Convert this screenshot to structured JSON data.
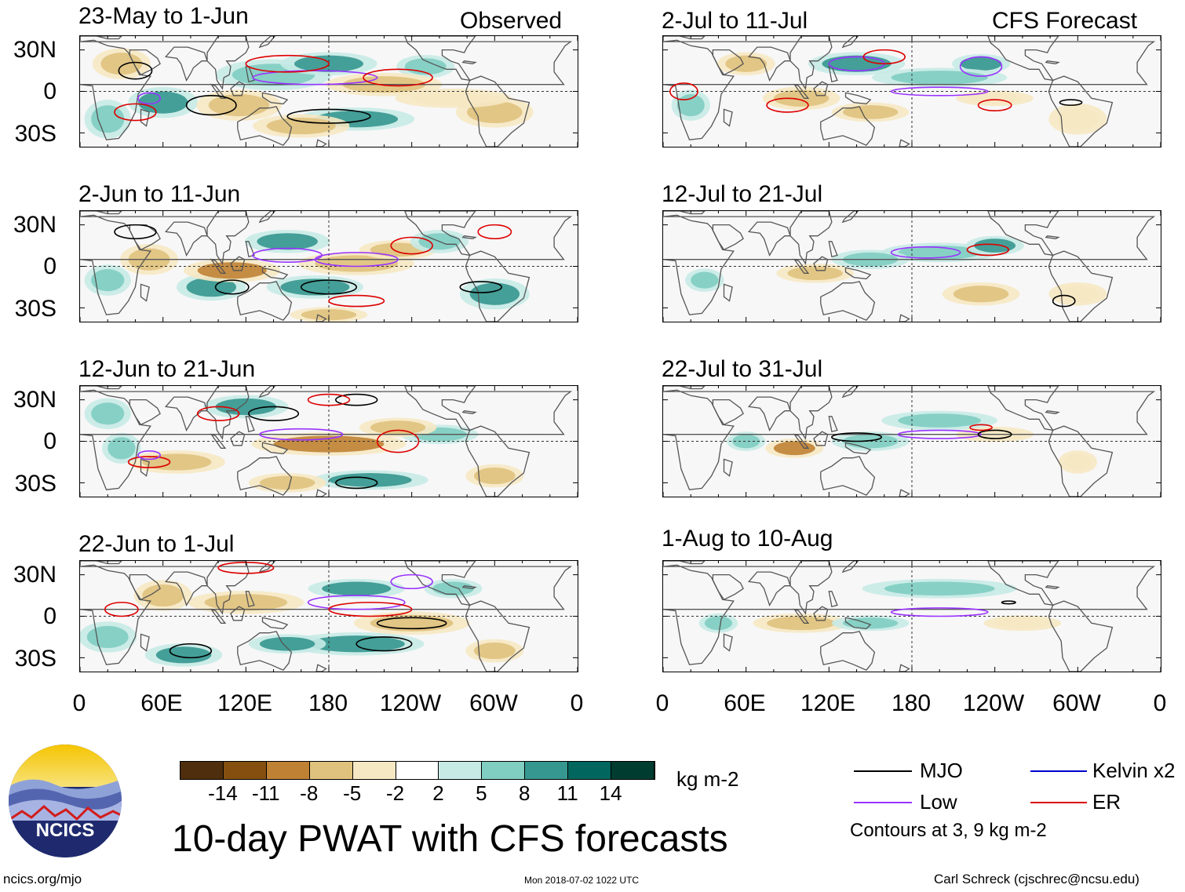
{
  "header_left": "Observed",
  "header_right": "CFS Forecast",
  "observed_panels": [
    {
      "title": "23-May to 1-Jun"
    },
    {
      "title": "2-Jun to 11-Jun"
    },
    {
      "title": "12-Jun to 21-Jun"
    },
    {
      "title": "22-Jun to 1-Jul"
    }
  ],
  "forecast_panels": [
    {
      "title": "2-Jul to 11-Jul"
    },
    {
      "title": "12-Jul to 21-Jul"
    },
    {
      "title": "22-Jul to 31-Jul"
    },
    {
      "title": "1-Aug to 10-Aug"
    }
  ],
  "lat_labels": [
    "30N",
    "0",
    "30S"
  ],
  "lon_labels": [
    "0",
    "60E",
    "120E",
    "180",
    "120W",
    "60W",
    "0"
  ],
  "colorbar": {
    "unit": "kg m-2",
    "labels": [
      "-14",
      "-11",
      "-8",
      "-5",
      "-2",
      "2",
      "5",
      "8",
      "11",
      "14"
    ],
    "colors": [
      "#4f2e0d",
      "#85500f",
      "#bf8234",
      "#dfc27d",
      "#f6e8c3",
      "#ffffff",
      "#c7eae5",
      "#80cdc1",
      "#35978f",
      "#01665e",
      "#003c30"
    ]
  },
  "legend": {
    "items": [
      {
        "label": "MJO",
        "color": "#000000"
      },
      {
        "label": "Kelvin x2",
        "color": "#0000cc"
      },
      {
        "label": "Low",
        "color": "#9933ff"
      },
      {
        "label": "ER",
        "color": "#dd0000"
      }
    ],
    "note": "Contours at 3, 9 kg m-2"
  },
  "title": "10-day PWAT with CFS forecasts",
  "logo_text": "NCICS",
  "footer_left": "ncics.org/mjo",
  "footer_center": "Mon 2018-07-02 1022 UTC",
  "footer_right": "Carl Schreck (cjschrec@ncsu.edu)"
}
